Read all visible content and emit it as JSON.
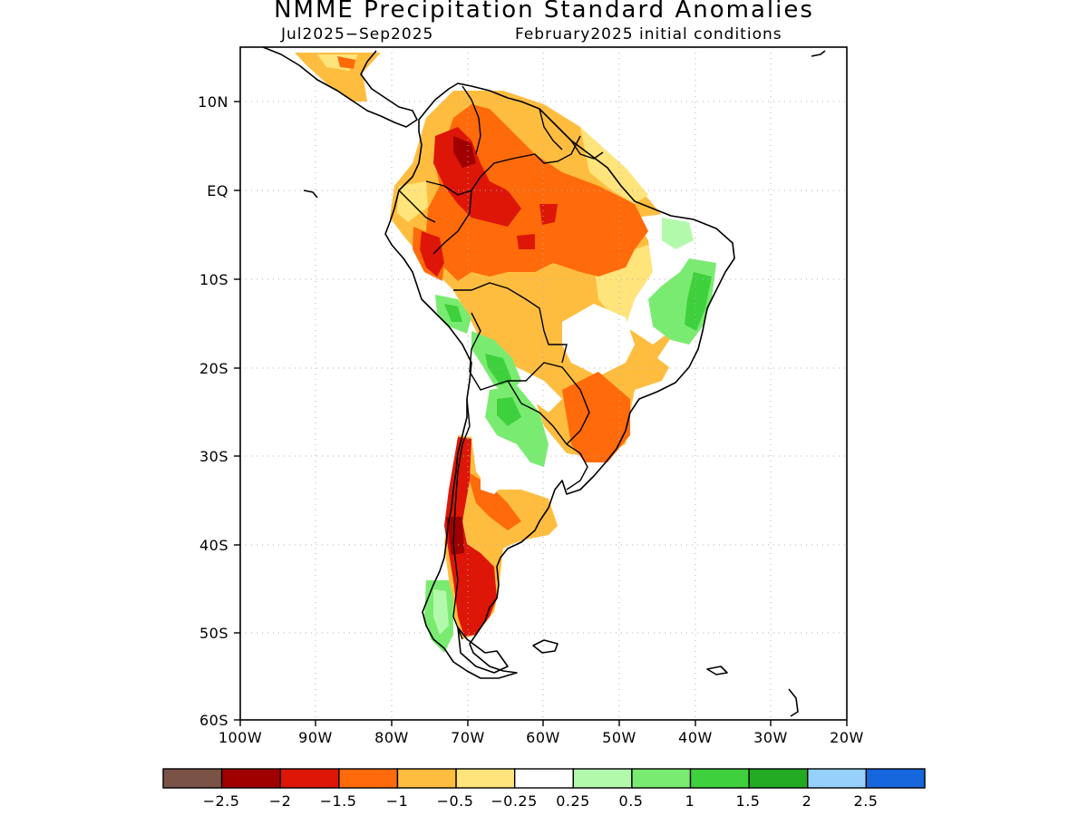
{
  "title": "NMME Precipitation Standard Anomalies",
  "subtitle_left": "Jul2025−Sep2025",
  "subtitle_right": "February2025 initial conditions",
  "y_ticks": [
    "10N",
    "EQ",
    "10S",
    "20S",
    "30S",
    "40S",
    "50S",
    "60S"
  ],
  "x_ticks": [
    "100W",
    "90W",
    "80W",
    "70W",
    "60W",
    "50W",
    "40W",
    "30W",
    "20W"
  ],
  "colorbar": {
    "colors": [
      "#7a5346",
      "#a10000",
      "#dd1608",
      "#ff6a0b",
      "#ffbd3f",
      "#ffe47b",
      "#ffffff",
      "#b3f9ab",
      "#7aeb71",
      "#3ed13d",
      "#22aa22",
      "#95d1fa",
      "#1666dd"
    ],
    "labels": [
      "−2.5",
      "−2",
      "−1.5",
      "−1",
      "−0.5",
      "−0.25",
      "0.25",
      "0.5",
      "1",
      "1.5",
      "2",
      "2.5"
    ]
  }
}
